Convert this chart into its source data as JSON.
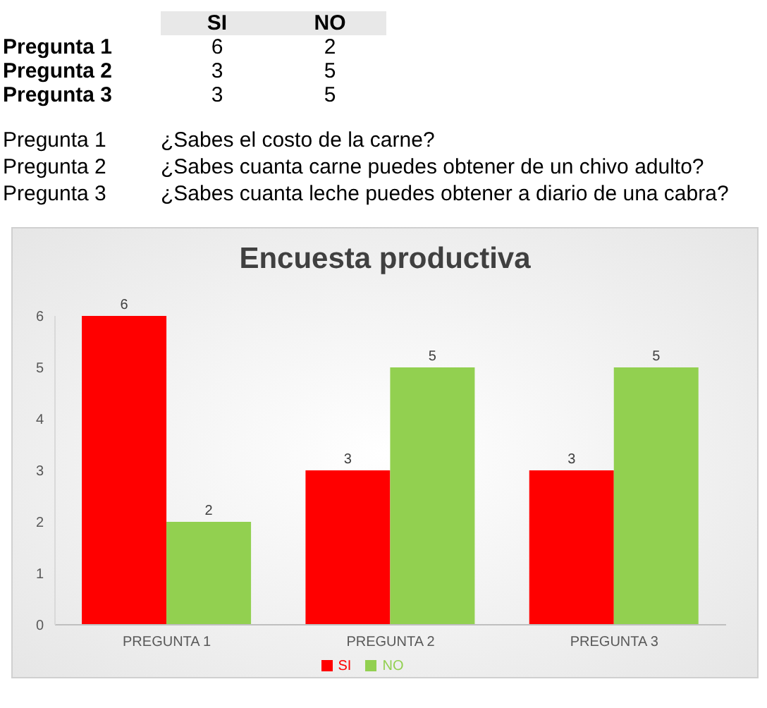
{
  "chart_data": {
    "type": "bar",
    "title": "Encuesta productiva",
    "categories": [
      "PREGUNTA 1",
      "PREGUNTA 2",
      "PREGUNTA 3"
    ],
    "series": [
      {
        "name": "SI",
        "color": "#ff0000",
        "values": [
          6,
          3,
          3
        ]
      },
      {
        "name": "NO",
        "color": "#92d050",
        "values": [
          2,
          5,
          5
        ]
      }
    ],
    "ylim": [
      0,
      6
    ],
    "yticks": [
      0,
      1,
      2,
      3,
      4,
      5,
      6
    ],
    "grid": false,
    "legend": "bottom",
    "data_labels": true,
    "annotations": [
      "Pregunta 1",
      "Pregunta 2",
      "Pregunta 3",
      "6",
      "2",
      "3",
      "5",
      "3",
      "5",
      "Pregunta 1",
      "¿Sabes el costo de la carne?",
      "Pregunta 2",
      "¿Sabes cuanta carne puedes obtener de un chivo adulto?",
      "Pregunta 3",
      "¿Sabes cuanta leche puedes obtener a diario de una cabra?"
    ]
  }
}
